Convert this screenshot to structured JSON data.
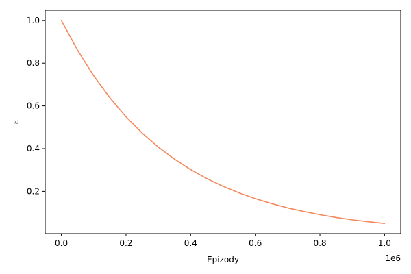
{
  "chart_data": {
    "type": "line",
    "title": "",
    "xlabel": "Epizody",
    "ylabel": "ε",
    "x_offset_label": "1e6",
    "xlim": [
      -0.05,
      1.05
    ],
    "ylim": [
      0.0025,
      1.0475
    ],
    "x_ticks": [
      0.0,
      0.2,
      0.4,
      0.6,
      0.8,
      1.0
    ],
    "x_tick_labels": [
      "0.0",
      "0.2",
      "0.4",
      "0.6",
      "0.8",
      "1.0"
    ],
    "y_ticks": [
      0.2,
      0.4,
      0.6,
      0.8,
      1.0
    ],
    "y_tick_labels": [
      "0.2",
      "0.4",
      "0.6",
      "0.8",
      "1.0"
    ],
    "grid": false,
    "legend": "none",
    "series": [
      {
        "color": "#f4875b",
        "x": [
          0.0,
          0.05,
          0.1,
          0.15,
          0.2,
          0.25,
          0.3,
          0.35,
          0.4,
          0.45,
          0.5,
          0.55,
          0.6,
          0.65,
          0.7,
          0.75,
          0.8,
          0.85,
          0.9,
          0.95,
          1.0
        ],
        "y": [
          1.0,
          0.861,
          0.741,
          0.638,
          0.549,
          0.473,
          0.407,
          0.351,
          0.302,
          0.26,
          0.224,
          0.193,
          0.166,
          0.143,
          0.123,
          0.106,
          0.091,
          0.078,
          0.067,
          0.058,
          0.05
        ]
      }
    ]
  }
}
